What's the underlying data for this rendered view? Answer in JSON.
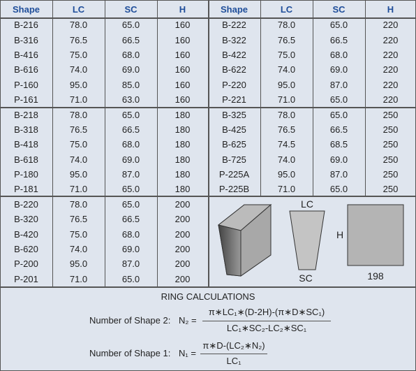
{
  "table": {
    "header": [
      "Shape",
      "LC",
      "SC",
      "H",
      "Shape",
      "LC",
      "SC",
      "H"
    ],
    "left_rows": [
      [
        "B-216",
        "78.0",
        "65.0",
        "160"
      ],
      [
        "B-316",
        "76.5",
        "66.5",
        "160"
      ],
      [
        "B-416",
        "75.0",
        "68.0",
        "160"
      ],
      [
        "B-616",
        "74.0",
        "69.0",
        "160"
      ],
      [
        "P-160",
        "95.0",
        "85.0",
        "160"
      ],
      [
        "P-161",
        "71.0",
        "63.0",
        "160"
      ],
      [
        "B-218",
        "78.0",
        "65.0",
        "180"
      ],
      [
        "B-318",
        "76.5",
        "66.5",
        "180"
      ],
      [
        "B-418",
        "75.0",
        "68.0",
        "180"
      ],
      [
        "B-618",
        "74.0",
        "69.0",
        "180"
      ],
      [
        "P-180",
        "95.0",
        "87.0",
        "180"
      ],
      [
        "P-181",
        "71.0",
        "65.0",
        "180"
      ],
      [
        "B-220",
        "78.0",
        "65.0",
        "200"
      ],
      [
        "B-320",
        "76.5",
        "66.5",
        "200"
      ],
      [
        "B-420",
        "75.0",
        "68.0",
        "200"
      ],
      [
        "B-620",
        "74.0",
        "69.0",
        "200"
      ],
      [
        "P-200",
        "95.0",
        "87.0",
        "200"
      ],
      [
        "P-201",
        "71.0",
        "65.0",
        "200"
      ]
    ],
    "right_rows": [
      [
        "B-222",
        "78.0",
        "65.0",
        "220"
      ],
      [
        "B-322",
        "76.5",
        "66.5",
        "220"
      ],
      [
        "B-422",
        "75.0",
        "68.0",
        "220"
      ],
      [
        "B-622",
        "74.0",
        "69.0",
        "220"
      ],
      [
        "P-220",
        "95.0",
        "87.0",
        "220"
      ],
      [
        "P-221",
        "71.0",
        "65.0",
        "220"
      ],
      [
        "B-325",
        "78.0",
        "65.0",
        "250"
      ],
      [
        "B-425",
        "76.5",
        "66.5",
        "250"
      ],
      [
        "B-625",
        "74.5",
        "68.5",
        "250"
      ],
      [
        "B-725",
        "74.0",
        "69.0",
        "250"
      ],
      [
        "P-225A",
        "95.0",
        "87.0",
        "250"
      ],
      [
        "P-225B",
        "71.0",
        "65.0",
        "250"
      ]
    ]
  },
  "diagram": {
    "lc": "LC",
    "h": "H",
    "sc": "SC",
    "size": "198"
  },
  "ring": {
    "title": "RING CALCULATIONS",
    "n2_label": "Number of Shape 2:",
    "n2_lhs": "N₂ =",
    "n2_num": "π∗LC₁∗(D-2H)-(π∗D∗SC₁)",
    "n2_den": "LC₁∗SC₂-LC₂∗SC₁",
    "n1_label": "Number of Shape 1:",
    "n1_lhs": "N₁ =",
    "n1_num": "π∗D-(LC₂∗N₂)",
    "n1_den": "LC₁"
  }
}
